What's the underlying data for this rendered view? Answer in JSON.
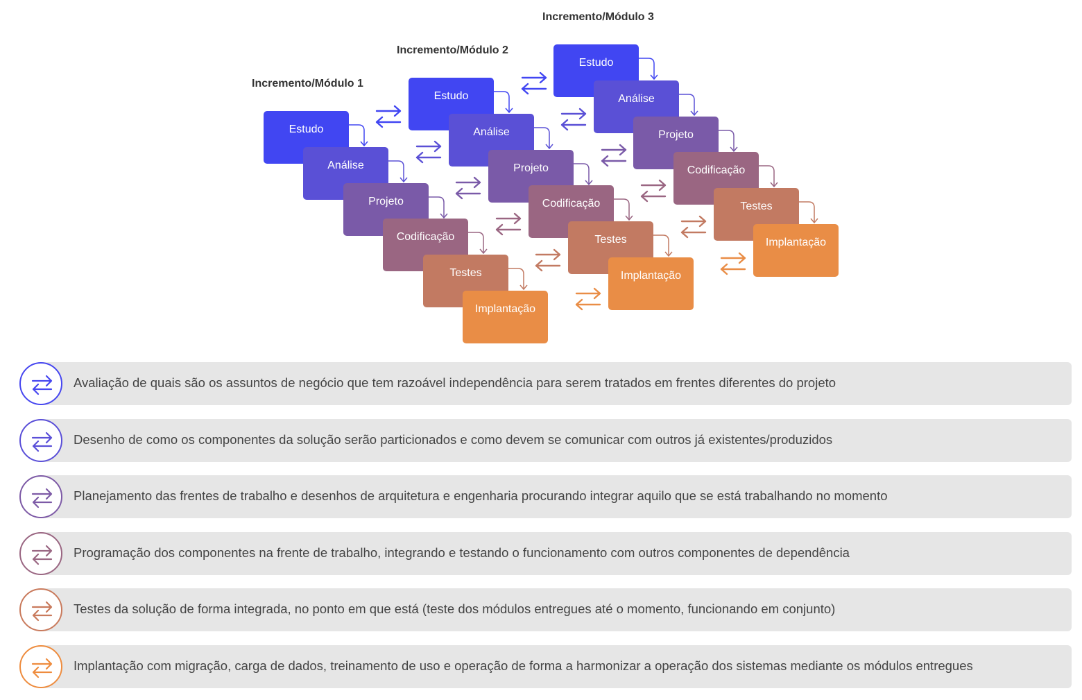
{
  "modules": [
    {
      "title": "Incremento/Módulo 1",
      "phases": [
        "Estudo",
        "Análise",
        "Projeto",
        "Codificação",
        "Testes",
        "Implantação"
      ]
    },
    {
      "title": "Incremento/Módulo 2",
      "phases": [
        "Estudo",
        "Análise",
        "Projeto",
        "Codificação",
        "Testes",
        "Implantação"
      ]
    },
    {
      "title": "Incremento/Módulo 3",
      "phases": [
        "Estudo",
        "Análise",
        "Projeto",
        "Codificação",
        "Testes",
        "Implantação"
      ]
    }
  ],
  "phase_colors": [
    "#4146f2",
    "#5a50d6",
    "#7a5aa8",
    "#9a6682",
    "#c27a62",
    "#e98d46"
  ],
  "legend": [
    {
      "icon": "exchange-arrows-icon",
      "color": "#4646f0",
      "text": "Avaliação de quais são os assuntos de negócio que tem razoável independência para serem tratados em frentes diferentes do projeto"
    },
    {
      "icon": "exchange-arrows-icon",
      "color": "#5a4fd8",
      "text": "Desenho de como os componentes da solução serão particionados e como devem se comunicar com outros já existentes/produzidos"
    },
    {
      "icon": "exchange-arrows-icon",
      "color": "#7d5aa6",
      "text": "Planejamento das frentes de trabalho e desenhos de arquitetura e engenharia procurando integrar aquilo que se está trabalhando no momento"
    },
    {
      "icon": "exchange-arrows-icon",
      "color": "#9a6682",
      "text": "Programação dos componentes na frente de trabalho, integrando e testando o funcionamento com outros componentes de dependência"
    },
    {
      "icon": "exchange-arrows-icon",
      "color": "#c97a5c",
      "text": "Testes da solução de forma integrada, no ponto em que está (teste dos módulos entregues até o momento, funcionando em conjunto)"
    },
    {
      "icon": "exchange-arrows-icon",
      "color": "#ee8c3e",
      "text": "Implantação com migração, carga de dados, treinamento de uso e operação de forma a harmonizar a operação dos sistemas mediante os módulos entregues"
    }
  ]
}
